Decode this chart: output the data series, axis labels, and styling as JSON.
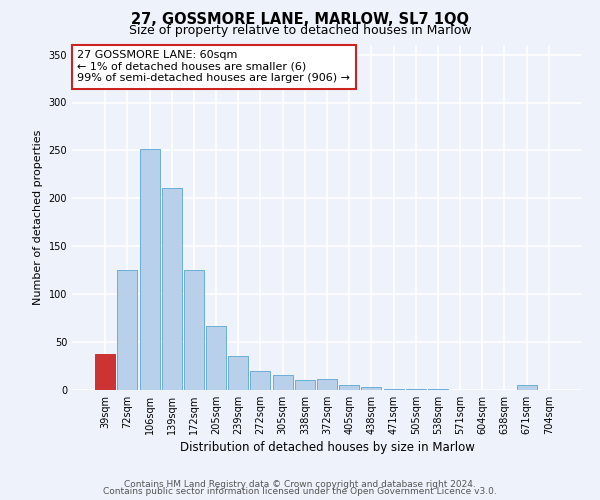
{
  "title": "27, GOSSMORE LANE, MARLOW, SL7 1QQ",
  "subtitle": "Size of property relative to detached houses in Marlow",
  "xlabel": "Distribution of detached houses by size in Marlow",
  "ylabel": "Number of detached properties",
  "categories": [
    "39sqm",
    "72sqm",
    "106sqm",
    "139sqm",
    "172sqm",
    "205sqm",
    "239sqm",
    "272sqm",
    "305sqm",
    "338sqm",
    "372sqm",
    "405sqm",
    "438sqm",
    "471sqm",
    "505sqm",
    "538sqm",
    "571sqm",
    "604sqm",
    "638sqm",
    "671sqm",
    "704sqm"
  ],
  "values": [
    38,
    125,
    252,
    211,
    125,
    67,
    35,
    20,
    16,
    10,
    11,
    5,
    3,
    1,
    1,
    1,
    0,
    0,
    0,
    5,
    0
  ],
  "bar_color": "#b8d0ea",
  "bar_edgecolor": "#6aaed6",
  "highlight_bar_index": 0,
  "highlight_color": "#cc3333",
  "highlight_edgecolor": "#cc3333",
  "annotation_box_text": "27 GOSSMORE LANE: 60sqm\n← 1% of detached houses are smaller (6)\n99% of semi-detached houses are larger (906) →",
  "ylim": [
    0,
    360
  ],
  "yticks": [
    0,
    50,
    100,
    150,
    200,
    250,
    300,
    350
  ],
  "background_color": "#eef2fb",
  "grid_color": "#ffffff",
  "footer_line1": "Contains HM Land Registry data © Crown copyright and database right 2024.",
  "footer_line2": "Contains public sector information licensed under the Open Government Licence v3.0.",
  "title_fontsize": 10.5,
  "subtitle_fontsize": 9,
  "xlabel_fontsize": 8.5,
  "ylabel_fontsize": 8,
  "tick_fontsize": 7,
  "annotation_fontsize": 8,
  "footer_fontsize": 6.5
}
